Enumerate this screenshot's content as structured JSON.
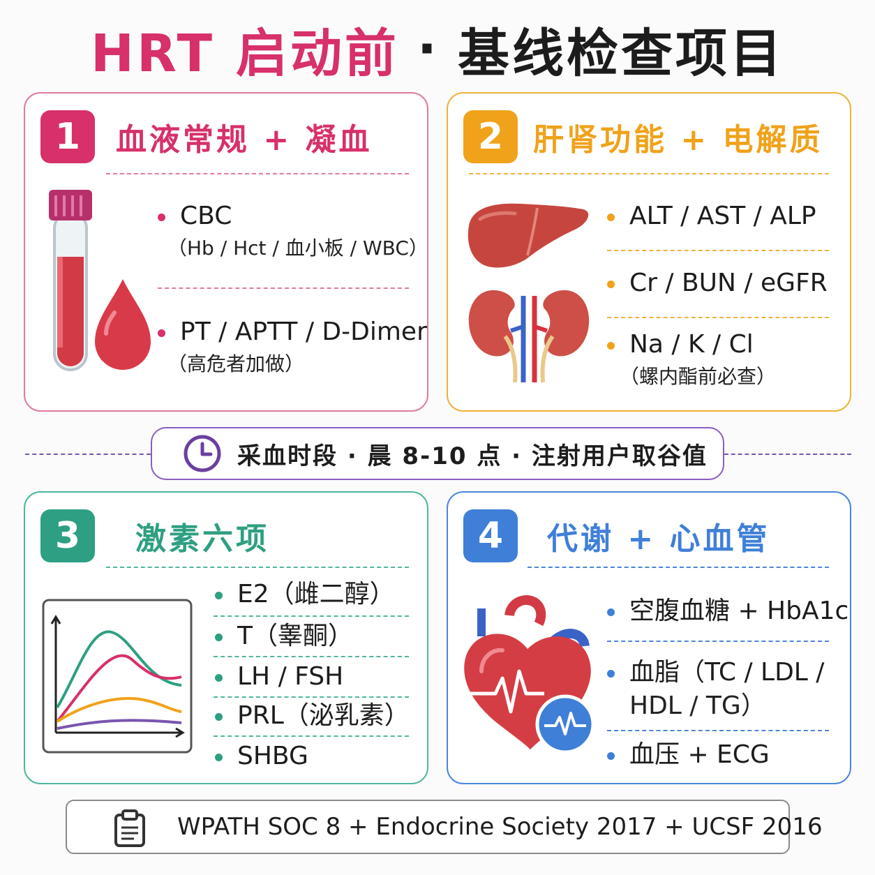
{
  "title": {
    "part1": "HRT 启动前",
    "dot": "·",
    "part2": "基线检查项目"
  },
  "colors": {
    "pink": "#d7306a",
    "orange": "#f0a21a",
    "teal": "#2e9f82",
    "blue": "#3f7fd8",
    "purple": "#7a55b0"
  },
  "cards": [
    {
      "number": "1",
      "heading": "血液常规 + 凝血",
      "icon": "blood-tube-and-drop-icon",
      "items": [
        {
          "main": "CBC",
          "sub": "（Hb / Hct / 血小板 / WBC）"
        },
        {
          "main": "PT / APTT / D-Dimer",
          "sub": "（高危者加做）"
        }
      ]
    },
    {
      "number": "2",
      "heading": "肝肾功能 + 电解质",
      "icon": "liver-and-kidneys-icon",
      "items": [
        {
          "main": "ALT / AST / ALP"
        },
        {
          "main": "Cr / BUN / eGFR"
        },
        {
          "main": "Na / K / Cl",
          "sub": "（螺内酯前必查）"
        }
      ]
    },
    {
      "number": "3",
      "heading": "激素六项",
      "icon": "hormone-curve-chart-icon",
      "items": [
        {
          "main": "E2（雌二醇）"
        },
        {
          "main": "T（睾酮）"
        },
        {
          "main": "LH / FSH"
        },
        {
          "main": "PRL（泌乳素）"
        },
        {
          "main": "SHBG"
        }
      ]
    },
    {
      "number": "4",
      "heading": "代谢 + 心血管",
      "icon": "heart-ecg-icon",
      "items": [
        {
          "main": "空腹血糖 + HbA1c"
        },
        {
          "main": "血脂（TC / LDL /",
          "sub": "HDL / TG）"
        },
        {
          "main": "血压 + ECG"
        }
      ]
    }
  ],
  "banner": {
    "icon": "clock-icon",
    "text": "采血时段 · 晨 8-10 点 · 注射用户取谷值"
  },
  "footer": {
    "icon": "clipboard-icon",
    "text": "WPATH SOC 8 + Endocrine Society 2017 + UCSF 2016"
  }
}
